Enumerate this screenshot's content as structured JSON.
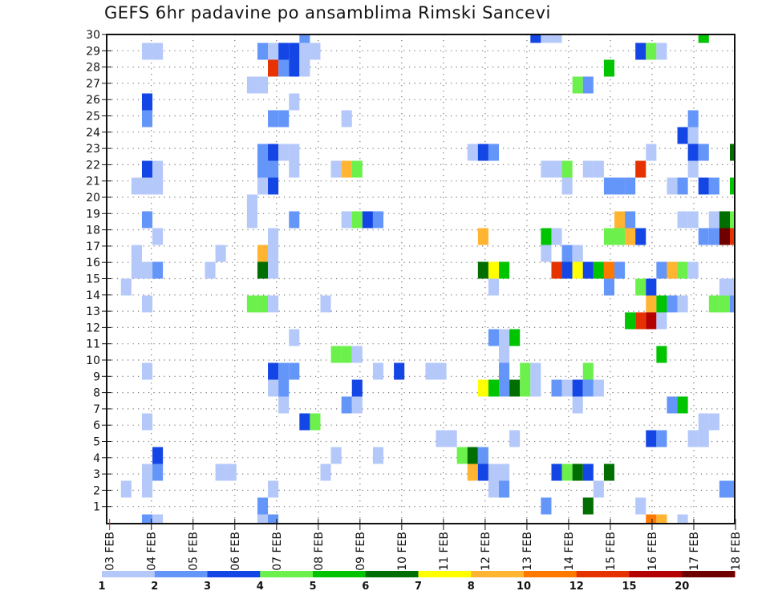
{
  "chart_data": {
    "type": "heatmap",
    "title": "GEFS 6hr padavine po ansamblima Rimski Sancevi",
    "xlabel": "",
    "ylabel": "",
    "x_tick_labels": [
      "03 FEB",
      "04 FEB",
      "05 FEB",
      "06 FEB",
      "07 FEB",
      "08 FEB",
      "09 FEB",
      "10 FEB",
      "11 FEB",
      "12 FEB",
      "13 FEB",
      "14 FEB",
      "15 FEB",
      "16 FEB",
      "17 FEB",
      "18 FEB"
    ],
    "y_tick_labels": [
      "1",
      "2",
      "3",
      "4",
      "5",
      "6",
      "7",
      "8",
      "9",
      "10",
      "11",
      "12",
      "13",
      "14",
      "15",
      "16",
      "17",
      "18",
      "19",
      "20",
      "21",
      "22",
      "23",
      "24",
      "25",
      "26",
      "27",
      "28",
      "29",
      "30"
    ],
    "x_unit": "6-hour step index from 03 FEB",
    "x_range": [
      0,
      60
    ],
    "y_range": [
      1,
      30
    ],
    "grid": true,
    "colorbar": {
      "placement": "bottom",
      "labels": [
        "1",
        "2",
        "3",
        "4",
        "5",
        "6",
        "7",
        "8",
        "10",
        "12",
        "15",
        "20"
      ],
      "colors": [
        "#b4c8fa",
        "#6496fa",
        "#1446e6",
        "#6cf04c",
        "#00c400",
        "#006e00",
        "#ffff00",
        "#ffb432",
        "#ff7800",
        "#e63200",
        "#b40000",
        "#6e0000"
      ]
    },
    "cells_format": [
      "step",
      "member",
      "color_level"
    ],
    "cells": [
      [
        19,
        30,
        1
      ],
      [
        41,
        30,
        2
      ],
      [
        42,
        30,
        0
      ],
      [
        43,
        30,
        0
      ],
      [
        57,
        30,
        4
      ],
      [
        4,
        29,
        0
      ],
      [
        5,
        29,
        0
      ],
      [
        15,
        29,
        1
      ],
      [
        16,
        29,
        0
      ],
      [
        17,
        29,
        2
      ],
      [
        18,
        29,
        2
      ],
      [
        19,
        29,
        0
      ],
      [
        20,
        29,
        0
      ],
      [
        51,
        29,
        2
      ],
      [
        52,
        29,
        3
      ],
      [
        53,
        29,
        0
      ],
      [
        16,
        28,
        9
      ],
      [
        17,
        28,
        1
      ],
      [
        18,
        28,
        2
      ],
      [
        19,
        28,
        0
      ],
      [
        48,
        28,
        4
      ],
      [
        14,
        27,
        0
      ],
      [
        15,
        27,
        0
      ],
      [
        45,
        27,
        3
      ],
      [
        46,
        27,
        1
      ],
      [
        4,
        26,
        2
      ],
      [
        18,
        26,
        0
      ],
      [
        4,
        25,
        1
      ],
      [
        16,
        25,
        1
      ],
      [
        17,
        25,
        1
      ],
      [
        23,
        25,
        0
      ],
      [
        56,
        25,
        1
      ],
      [
        55,
        24,
        2
      ],
      [
        56,
        24,
        0
      ],
      [
        15,
        23,
        1
      ],
      [
        16,
        23,
        2
      ],
      [
        17,
        23,
        0
      ],
      [
        18,
        23,
        0
      ],
      [
        35,
        23,
        0
      ],
      [
        36,
        23,
        2
      ],
      [
        37,
        23,
        1
      ],
      [
        52,
        23,
        0
      ],
      [
        56,
        23,
        2
      ],
      [
        57,
        23,
        1
      ],
      [
        60,
        23,
        5
      ],
      [
        4,
        22,
        2
      ],
      [
        5,
        22,
        0
      ],
      [
        15,
        22,
        1
      ],
      [
        16,
        22,
        1
      ],
      [
        18,
        22,
        0
      ],
      [
        22,
        22,
        0
      ],
      [
        23,
        22,
        7
      ],
      [
        24,
        22,
        3
      ],
      [
        42,
        22,
        0
      ],
      [
        43,
        22,
        0
      ],
      [
        44,
        22,
        3
      ],
      [
        46,
        22,
        0
      ],
      [
        47,
        22,
        0
      ],
      [
        51,
        22,
        9
      ],
      [
        56,
        22,
        0
      ],
      [
        3,
        21,
        0
      ],
      [
        4,
        21,
        0
      ],
      [
        5,
        21,
        0
      ],
      [
        15,
        21,
        0
      ],
      [
        16,
        21,
        2
      ],
      [
        44,
        21,
        0
      ],
      [
        48,
        21,
        1
      ],
      [
        49,
        21,
        1
      ],
      [
        50,
        21,
        1
      ],
      [
        54,
        21,
        0
      ],
      [
        55,
        21,
        1
      ],
      [
        57,
        21,
        2
      ],
      [
        58,
        21,
        1
      ],
      [
        60,
        21,
        4
      ],
      [
        14,
        20,
        0
      ],
      [
        4,
        19,
        1
      ],
      [
        14,
        19,
        0
      ],
      [
        18,
        19,
        1
      ],
      [
        23,
        19,
        0
      ],
      [
        24,
        19,
        3
      ],
      [
        25,
        19,
        2
      ],
      [
        26,
        19,
        1
      ],
      [
        49,
        19,
        7
      ],
      [
        50,
        19,
        1
      ],
      [
        55,
        19,
        0
      ],
      [
        56,
        19,
        0
      ],
      [
        58,
        19,
        0
      ],
      [
        59,
        19,
        5
      ],
      [
        60,
        19,
        3
      ],
      [
        5,
        18,
        0
      ],
      [
        16,
        18,
        0
      ],
      [
        36,
        18,
        7
      ],
      [
        42,
        18,
        4
      ],
      [
        43,
        18,
        0
      ],
      [
        48,
        18,
        3
      ],
      [
        49,
        18,
        3
      ],
      [
        50,
        18,
        7
      ],
      [
        51,
        18,
        2
      ],
      [
        57,
        18,
        1
      ],
      [
        58,
        18,
        1
      ],
      [
        59,
        18,
        11
      ],
      [
        60,
        18,
        9
      ],
      [
        3,
        17,
        0
      ],
      [
        11,
        17,
        0
      ],
      [
        15,
        17,
        7
      ],
      [
        16,
        17,
        0
      ],
      [
        42,
        17,
        0
      ],
      [
        44,
        17,
        1
      ],
      [
        45,
        17,
        0
      ],
      [
        3,
        16,
        0
      ],
      [
        4,
        16,
        0
      ],
      [
        5,
        16,
        1
      ],
      [
        10,
        16,
        0
      ],
      [
        15,
        16,
        5
      ],
      [
        16,
        16,
        0
      ],
      [
        36,
        16,
        5
      ],
      [
        37,
        16,
        6
      ],
      [
        38,
        16,
        4
      ],
      [
        43,
        16,
        9
      ],
      [
        44,
        16,
        2
      ],
      [
        45,
        16,
        6
      ],
      [
        46,
        16,
        2
      ],
      [
        47,
        16,
        4
      ],
      [
        48,
        16,
        8
      ],
      [
        49,
        16,
        1
      ],
      [
        53,
        16,
        1
      ],
      [
        54,
        16,
        7
      ],
      [
        55,
        16,
        3
      ],
      [
        56,
        16,
        0
      ],
      [
        2,
        15,
        0
      ],
      [
        37,
        15,
        0
      ],
      [
        48,
        15,
        1
      ],
      [
        51,
        15,
        3
      ],
      [
        52,
        15,
        2
      ],
      [
        59,
        15,
        0
      ],
      [
        60,
        15,
        0
      ],
      [
        4,
        14,
        0
      ],
      [
        14,
        14,
        3
      ],
      [
        15,
        14,
        3
      ],
      [
        16,
        14,
        0
      ],
      [
        21,
        14,
        0
      ],
      [
        52,
        14,
        7
      ],
      [
        53,
        14,
        4
      ],
      [
        54,
        14,
        1
      ],
      [
        55,
        14,
        0
      ],
      [
        58,
        14,
        3
      ],
      [
        59,
        14,
        3
      ],
      [
        60,
        14,
        1
      ],
      [
        50,
        13,
        4
      ],
      [
        51,
        13,
        9
      ],
      [
        52,
        13,
        10
      ],
      [
        53,
        13,
        0
      ],
      [
        18,
        12,
        0
      ],
      [
        37,
        12,
        1
      ],
      [
        38,
        12,
        0
      ],
      [
        39,
        12,
        4
      ],
      [
        22,
        11,
        3
      ],
      [
        23,
        11,
        3
      ],
      [
        24,
        11,
        0
      ],
      [
        38,
        11,
        0
      ],
      [
        53,
        11,
        4
      ],
      [
        4,
        10,
        0
      ],
      [
        16,
        10,
        2
      ],
      [
        17,
        10,
        1
      ],
      [
        18,
        10,
        1
      ],
      [
        26,
        10,
        0
      ],
      [
        28,
        10,
        2
      ],
      [
        31,
        10,
        0
      ],
      [
        32,
        10,
        0
      ],
      [
        38,
        10,
        1
      ],
      [
        40,
        10,
        3
      ],
      [
        41,
        10,
        0
      ],
      [
        46,
        10,
        3
      ],
      [
        16,
        9,
        0
      ],
      [
        17,
        9,
        1
      ],
      [
        24,
        9,
        2
      ],
      [
        36,
        9,
        6
      ],
      [
        37,
        9,
        4
      ],
      [
        38,
        9,
        1
      ],
      [
        39,
        9,
        5
      ],
      [
        40,
        9,
        3
      ],
      [
        41,
        9,
        0
      ],
      [
        43,
        9,
        1
      ],
      [
        44,
        9,
        0
      ],
      [
        45,
        9,
        2
      ],
      [
        46,
        9,
        1
      ],
      [
        47,
        9,
        0
      ],
      [
        17,
        8,
        0
      ],
      [
        23,
        8,
        1
      ],
      [
        24,
        8,
        0
      ],
      [
        45,
        8,
        0
      ],
      [
        54,
        8,
        1
      ],
      [
        55,
        8,
        4
      ],
      [
        4,
        7,
        0
      ],
      [
        19,
        7,
        2
      ],
      [
        20,
        7,
        3
      ],
      [
        57,
        7,
        0
      ],
      [
        58,
        7,
        0
      ],
      [
        32,
        6,
        0
      ],
      [
        33,
        6,
        0
      ],
      [
        39,
        6,
        0
      ],
      [
        52,
        6,
        2
      ],
      [
        53,
        6,
        1
      ],
      [
        56,
        6,
        0
      ],
      [
        57,
        6,
        0
      ],
      [
        5,
        5,
        2
      ],
      [
        22,
        5,
        0
      ],
      [
        26,
        5,
        0
      ],
      [
        34,
        5,
        3
      ],
      [
        35,
        5,
        5
      ],
      [
        36,
        5,
        1
      ],
      [
        4,
        4,
        0
      ],
      [
        5,
        4,
        1
      ],
      [
        11,
        4,
        0
      ],
      [
        12,
        4,
        0
      ],
      [
        21,
        4,
        0
      ],
      [
        35,
        4,
        7
      ],
      [
        36,
        4,
        2
      ],
      [
        37,
        4,
        0
      ],
      [
        38,
        4,
        0
      ],
      [
        43,
        4,
        2
      ],
      [
        44,
        4,
        3
      ],
      [
        45,
        4,
        5
      ],
      [
        46,
        4,
        2
      ],
      [
        48,
        4,
        5
      ],
      [
        2,
        3,
        0
      ],
      [
        4,
        3,
        0
      ],
      [
        16,
        3,
        0
      ],
      [
        37,
        3,
        0
      ],
      [
        38,
        3,
        1
      ],
      [
        47,
        3,
        0
      ],
      [
        59,
        3,
        1
      ],
      [
        60,
        3,
        1
      ],
      [
        15,
        2,
        1
      ],
      [
        42,
        2,
        1
      ],
      [
        46,
        2,
        5
      ],
      [
        51,
        2,
        0
      ],
      [
        4,
        1,
        1
      ],
      [
        5,
        1,
        0
      ],
      [
        15,
        1,
        0
      ],
      [
        16,
        1,
        1
      ],
      [
        52,
        1,
        8
      ],
      [
        53,
        1,
        7
      ],
      [
        55,
        1,
        0
      ]
    ]
  }
}
